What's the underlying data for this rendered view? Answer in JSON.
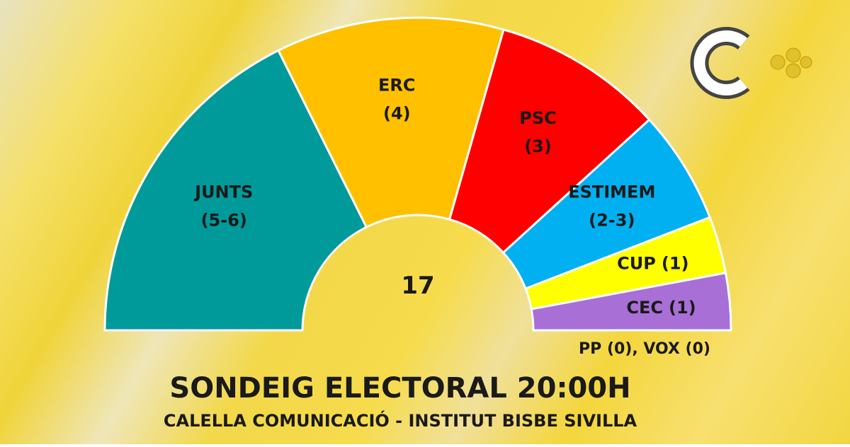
{
  "chart_data": {
    "type": "hemicycle",
    "title": "SONDEIG ELECTORAL 20:00H",
    "subtitle": "CALELLA COMUNICACIÓ - INSTITUT BISBE SIVILLA",
    "total": 17,
    "categories": [
      "JUNTS",
      "ERC",
      "PSC",
      "ESTIMEM",
      "CUP",
      "CEC"
    ],
    "values": [
      6,
      4,
      3,
      2,
      1,
      1
    ],
    "value_labels": [
      "(5-6)",
      "(4)",
      "(3)",
      "(2-3)",
      "(1)",
      "(1)"
    ],
    "colors": [
      "#009a9a",
      "#ffc000",
      "#ff0000",
      "#00b0f0",
      "#ffff00",
      "#a86fd6"
    ],
    "note": "PP (0), VOX (0)"
  }
}
